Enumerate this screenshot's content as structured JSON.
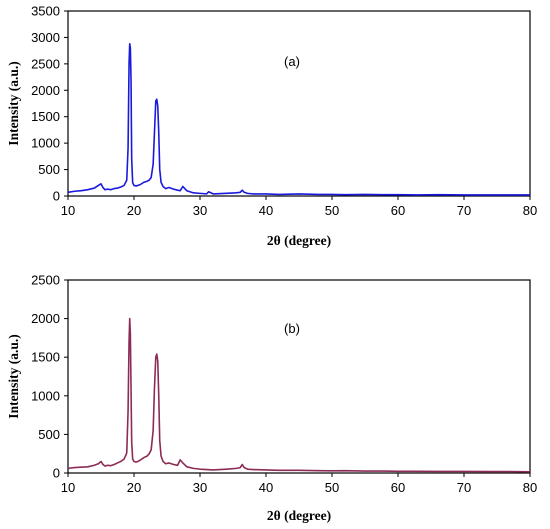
{
  "chart_data": [
    {
      "type": "line",
      "annotation": "(a)",
      "xlabel": "2θ (degree)",
      "ylabel": "Intensity (a.u.)",
      "xlim": [
        10,
        80
      ],
      "ylim": [
        0,
        3500
      ],
      "xticks": [
        10,
        20,
        30,
        40,
        50,
        60,
        70,
        80
      ],
      "yticks": [
        0,
        500,
        1000,
        1500,
        2000,
        2500,
        3000,
        3500
      ],
      "grid": false,
      "series": [
        {
          "color": "#1a1adc",
          "x": [
            10,
            11,
            12,
            13,
            14,
            14.6,
            15,
            15.3,
            15.6,
            16,
            16.5,
            17,
            17.5,
            18,
            18.5,
            18.9,
            19.1,
            19.25,
            19.35,
            19.45,
            19.55,
            19.65,
            19.8,
            20,
            20.3,
            20.6,
            21,
            21.5,
            22,
            22.3,
            22.6,
            22.9,
            23.1,
            23.3,
            23.45,
            23.6,
            23.75,
            23.9,
            24.1,
            24.4,
            24.8,
            25.3,
            26,
            26.6,
            27,
            27.4,
            28,
            29,
            30,
            31,
            31.3,
            32,
            34,
            35.5,
            36.1,
            36.4,
            36.7,
            37.2,
            38,
            40,
            42,
            45,
            48,
            50,
            52,
            55,
            58,
            60,
            63,
            66,
            70,
            74,
            77,
            80
          ],
          "values": [
            70,
            90,
            100,
            120,
            150,
            200,
            230,
            160,
            120,
            130,
            120,
            140,
            150,
            170,
            200,
            300,
            900,
            2500,
            2880,
            2800,
            2200,
            700,
            250,
            200,
            190,
            200,
            220,
            260,
            280,
            300,
            350,
            600,
            1200,
            1800,
            1830,
            1700,
            1200,
            500,
            260,
            180,
            140,
            160,
            130,
            110,
            100,
            180,
            100,
            60,
            50,
            40,
            80,
            40,
            50,
            60,
            70,
            110,
            70,
            50,
            40,
            40,
            30,
            40,
            30,
            30,
            25,
            30,
            25,
            25,
            20,
            25,
            20,
            20,
            20,
            20
          ]
        }
      ]
    },
    {
      "type": "line",
      "annotation": "(b)",
      "xlabel": "2θ (degree)",
      "ylabel": "Intensity (a.u.)",
      "xlim": [
        10,
        80
      ],
      "ylim": [
        0,
        2500
      ],
      "xticks": [
        10,
        20,
        30,
        40,
        50,
        60,
        70,
        80
      ],
      "yticks": [
        0,
        500,
        1000,
        1500,
        2000,
        2500
      ],
      "grid": false,
      "series": [
        {
          "color": "#8c2b55",
          "x": [
            10,
            11,
            12,
            13,
            14,
            14.6,
            15,
            15.3,
            15.6,
            16,
            16.5,
            17,
            17.5,
            18,
            18.5,
            18.9,
            19.1,
            19.25,
            19.35,
            19.45,
            19.55,
            19.65,
            19.8,
            20,
            20.3,
            20.6,
            21,
            21.5,
            22,
            22.3,
            22.6,
            22.9,
            23.1,
            23.3,
            23.45,
            23.6,
            23.75,
            23.9,
            24.1,
            24.4,
            24.8,
            25.3,
            26,
            26.6,
            27,
            27.4,
            28,
            29,
            30,
            31,
            32,
            34,
            35.5,
            36.1,
            36.4,
            36.7,
            37.2,
            38,
            40,
            42,
            45,
            48,
            50,
            52,
            55,
            58,
            60,
            63,
            66,
            70,
            74,
            77,
            80
          ],
          "values": [
            60,
            70,
            75,
            80,
            100,
            120,
            150,
            110,
            90,
            100,
            95,
            110,
            130,
            150,
            180,
            260,
            800,
            1700,
            2000,
            1800,
            1100,
            400,
            180,
            150,
            140,
            150,
            170,
            200,
            220,
            250,
            300,
            550,
            1100,
            1500,
            1540,
            1450,
            1000,
            420,
            220,
            150,
            120,
            130,
            110,
            100,
            170,
            130,
            80,
            60,
            50,
            45,
            40,
            50,
            60,
            70,
            110,
            70,
            50,
            45,
            40,
            35,
            35,
            30,
            28,
            30,
            25,
            25,
            22,
            22,
            20,
            20,
            18,
            18,
            15
          ]
        }
      ]
    }
  ]
}
